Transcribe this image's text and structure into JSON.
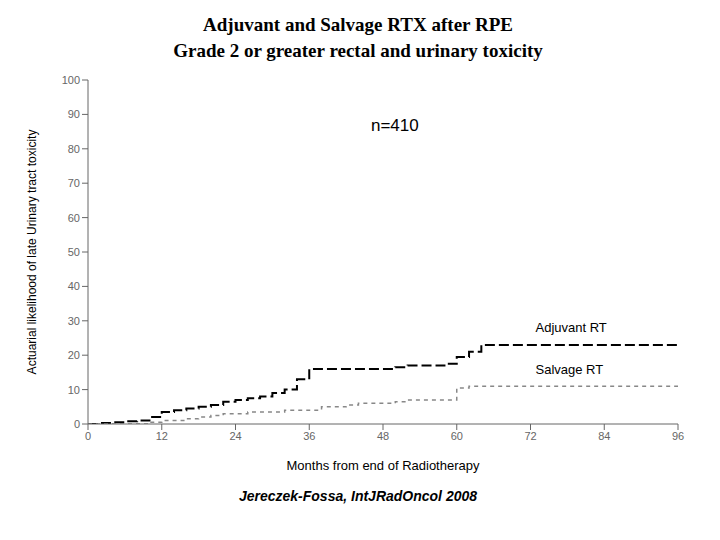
{
  "chart_data": {
    "type": "step",
    "title": "Adjuvant and Salvage RTX after RPE",
    "subtitle": "Grade 2 or greater rectal and urinary toxicity",
    "xlabel": "Months from end of Radiotherapy",
    "ylabel": "Actuarial likelihood of late Urinary tract toxicity",
    "annotations": [
      "n=410",
      "Jereczek-Fossa, IntJRadOncol 2008"
    ],
    "x": [
      0,
      2,
      4,
      6,
      8,
      10,
      12,
      14,
      16,
      18,
      20,
      22,
      24,
      26,
      28,
      30,
      32,
      34,
      36,
      38,
      40,
      42,
      44,
      46,
      48,
      50,
      52,
      54,
      56,
      58,
      60,
      62,
      64,
      66,
      68,
      70,
      72,
      74,
      76,
      78,
      80,
      82,
      84,
      86,
      88,
      90,
      92,
      94,
      96
    ],
    "series": [
      {
        "name": "Adjuvant RT",
        "color": "#000000",
        "line_style": "dashed",
        "values": [
          0,
          0.3,
          0.5,
          0.8,
          1.0,
          2.0,
          3.5,
          4.0,
          4.5,
          5.0,
          5.5,
          6.5,
          7.0,
          7.5,
          8.0,
          9.0,
          10.0,
          13.0,
          16.0,
          16.0,
          16.0,
          16.0,
          16.0,
          16.0,
          16.0,
          16.5,
          17.0,
          17.0,
          17.0,
          17.5,
          19.5,
          21.0,
          23.0,
          23.0,
          23.0,
          23.0,
          23.0,
          23.0,
          23.0,
          23.0,
          23.0,
          23.0,
          23.0,
          23.0,
          23.0,
          23.0,
          23.0,
          23.0,
          23.0
        ]
      },
      {
        "name": "Salvage RT",
        "color": "#888888",
        "line_style": "dashed",
        "values": [
          0,
          0,
          0,
          0,
          0,
          0.5,
          1.0,
          1.0,
          1.5,
          2.0,
          2.5,
          3.0,
          3.0,
          3.5,
          3.5,
          3.5,
          4.0,
          4.0,
          4.0,
          5.0,
          5.0,
          5.5,
          6.0,
          6.0,
          6.0,
          6.5,
          7.0,
          7.0,
          7.0,
          7.0,
          10.5,
          11.0,
          11.0,
          11.0,
          11.0,
          11.0,
          11.0,
          11.0,
          11.0,
          11.0,
          11.0,
          11.0,
          11.0,
          11.0,
          11.0,
          11.0,
          11.0,
          11.0,
          11.0
        ]
      }
    ],
    "xlim": [
      0,
      96
    ],
    "ylim": [
      0,
      100
    ],
    "xticks": [
      0,
      12,
      24,
      36,
      48,
      60,
      72,
      84,
      96
    ],
    "yticks": [
      0,
      10,
      20,
      30,
      40,
      50,
      60,
      70,
      80,
      90,
      100
    ],
    "grid": false
  }
}
